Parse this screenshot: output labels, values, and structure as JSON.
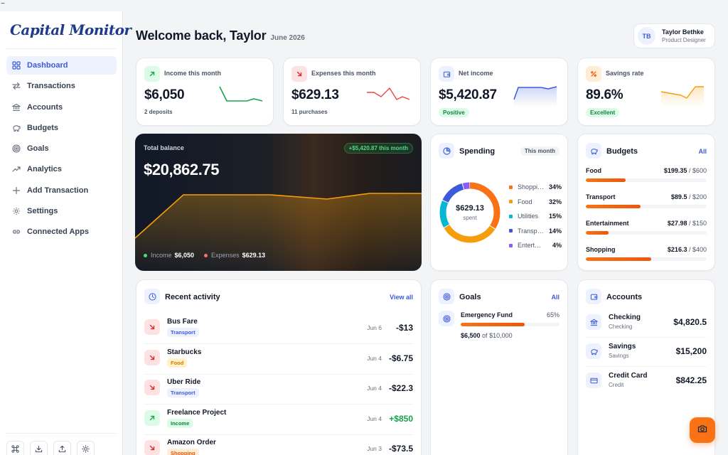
{
  "top_glyph": "~",
  "brand": {
    "name": "Capital Monitor"
  },
  "sidebar": {
    "items": [
      {
        "label": "Dashboard",
        "icon": "grid-icon",
        "active": true
      },
      {
        "label": "Transactions",
        "icon": "arrows-swap-icon"
      },
      {
        "label": "Accounts",
        "icon": "bank-icon"
      },
      {
        "label": "Budgets",
        "icon": "piggy-bank-icon"
      },
      {
        "label": "Goals",
        "icon": "target-icon"
      },
      {
        "label": "Analytics",
        "icon": "trend-up-icon"
      },
      {
        "label": "Add Transaction",
        "icon": "plus-icon"
      },
      {
        "label": "Settings",
        "icon": "gear-icon"
      },
      {
        "label": "Connected Apps",
        "icon": "link-icon"
      }
    ],
    "footer_buttons": [
      "command-icon",
      "download-icon",
      "upload-icon",
      "sun-icon"
    ]
  },
  "header": {
    "welcome": "Welcome back, Taylor",
    "date": "June 2026"
  },
  "user": {
    "initials": "TB",
    "name": "Taylor Bethke",
    "role": "Product Designer"
  },
  "stats": [
    {
      "label": "Income this month",
      "value": "$6,050",
      "sub": "2 deposits"
    },
    {
      "label": "Expenses this month",
      "value": "$629.13",
      "sub": "11 purchases"
    },
    {
      "label": "Net income",
      "value": "$5,420.87",
      "badge": "Positive"
    },
    {
      "label": "Savings rate",
      "value": "89.6%",
      "badge": "Excellent"
    }
  ],
  "balance": {
    "label": "Total balance",
    "value": "$20,862.75",
    "change": "+$5,420.87 this month",
    "income_label": "Income",
    "income_value": "$6,050",
    "expenses_label": "Expenses",
    "expenses_value": "$629.13"
  },
  "spending": {
    "title": "Spending",
    "period": "This month",
    "total": "$629.13",
    "total_label": "spent",
    "categories": [
      {
        "name": "Shopping",
        "pct": "34%",
        "value": 34,
        "color": "#f97316"
      },
      {
        "name": "Food",
        "pct": "32%",
        "value": 32,
        "color": "#f59e0b"
      },
      {
        "name": "Utilities",
        "pct": "15%",
        "value": 15,
        "color": "#06b6d4"
      },
      {
        "name": "Transport",
        "pct": "14%",
        "value": 14,
        "color": "#3b5bdb"
      },
      {
        "name": "Entertainment",
        "pct": "4%",
        "value": 4,
        "color": "#8b5cf6"
      }
    ]
  },
  "budgets": {
    "title": "Budgets",
    "link": "All",
    "items": [
      {
        "name": "Food",
        "spent": "$199.35",
        "limit": "$600",
        "ratio": 0.33
      },
      {
        "name": "Transport",
        "spent": "$89.5",
        "limit": "$200",
        "ratio": 0.45
      },
      {
        "name": "Entertainment",
        "spent": "$27.98",
        "limit": "$150",
        "ratio": 0.19
      },
      {
        "name": "Shopping",
        "spent": "$216.3",
        "limit": "$400",
        "ratio": 0.54
      }
    ]
  },
  "activity": {
    "title": "Recent activity",
    "link": "View all",
    "items": [
      {
        "name": "Bus Fare",
        "tag": "Transport",
        "date": "Jun 6",
        "amount": "-$13",
        "type": "expense"
      },
      {
        "name": "Starbucks",
        "tag": "Food",
        "date": "Jun 4",
        "amount": "-$6.75",
        "type": "expense"
      },
      {
        "name": "Uber Ride",
        "tag": "Transport",
        "date": "Jun 4",
        "amount": "-$22.3",
        "type": "expense"
      },
      {
        "name": "Freelance Project",
        "tag": "Income",
        "date": "Jun 4",
        "amount": "+$850",
        "type": "income"
      },
      {
        "name": "Amazon Order",
        "tag": "Shopping",
        "date": "Jun 3",
        "amount": "-$73.5",
        "type": "expense"
      }
    ]
  },
  "goals": {
    "title": "Goals",
    "link": "All",
    "items": [
      {
        "name": "Emergency Fund",
        "pct": "65%",
        "ratio": 0.65,
        "saved": "$6,500",
        "of": "of",
        "target": "$10,000"
      }
    ]
  },
  "accounts": {
    "title": "Accounts",
    "items": [
      {
        "name": "Checking",
        "type": "Checking",
        "balance": "$4,820.5",
        "icon": "bank-icon"
      },
      {
        "name": "Savings",
        "type": "Savings",
        "balance": "$15,200",
        "icon": "piggy-bank-icon"
      },
      {
        "name": "Credit Card",
        "type": "Credit",
        "balance": "$842.25",
        "icon": "credit-card-icon"
      }
    ]
  },
  "colors": {
    "accent": "#3b5bdb",
    "orange": "#f97316",
    "income": "#16a34a",
    "expense": "#dc2626"
  }
}
